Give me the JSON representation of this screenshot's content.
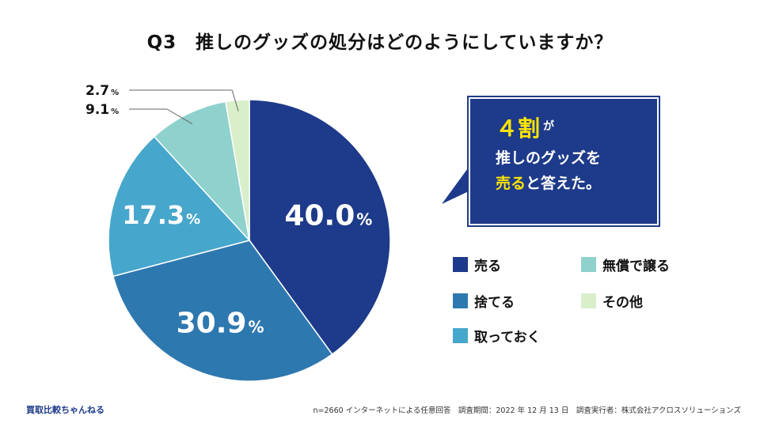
{
  "title": "Q3　推しのグッズの処分はどのようにしていますか？",
  "chart_data": {
    "type": "pie",
    "title": "Q3　推しのグッズの処分はどのようにしていますか？",
    "unit": "%",
    "slices": [
      {
        "label": "売る",
        "value": 40.0,
        "value_text": "40.0",
        "color": "#1e3a8a"
      },
      {
        "label": "捨てる",
        "value": 30.9,
        "value_text": "30.9",
        "color": "#2e78b0"
      },
      {
        "label": "取っておく",
        "value": 17.3,
        "value_text": "17.3",
        "color": "#47a6cc"
      },
      {
        "label": "無償で譲る",
        "value": 9.1,
        "value_text": "9.1",
        "color": "#8fd1cd"
      },
      {
        "label": "その他",
        "value": 2.7,
        "value_text": "2.7",
        "color": "#d8efca"
      }
    ]
  },
  "callout": {
    "big": "４割",
    "small": "が",
    "line2": "推しのグッズを",
    "line3_highlight": "売る",
    "line3_rest": "と答えた。"
  },
  "footer": {
    "brand": "買取比較ちゃんねる",
    "note": "n=2660 インターネットによる任意回答　調査期間：2022 年 12 月 13 日　調査実行者：株式会社アクロスソリューションズ"
  }
}
